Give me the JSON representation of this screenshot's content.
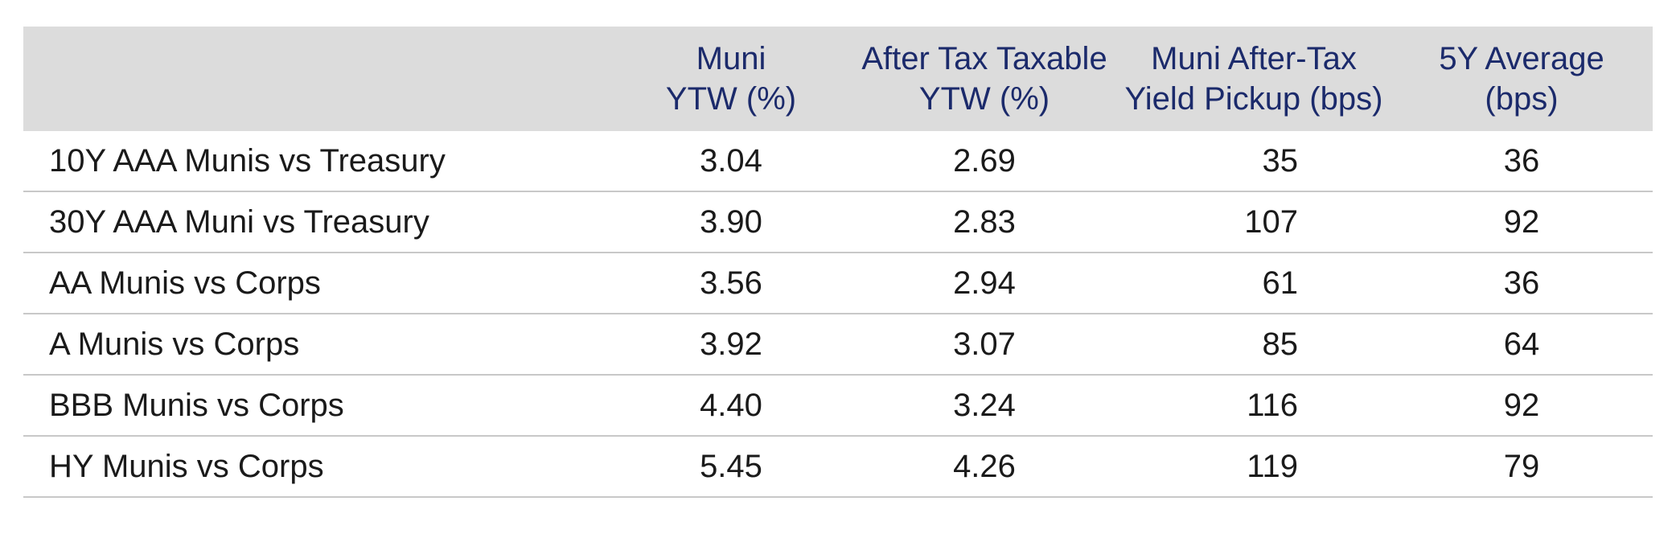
{
  "chart_data": {
    "type": "table",
    "columns": [
      "",
      "Muni YTW (%)",
      "After Tax Taxable YTW (%)",
      "Muni After-Tax Yield Pickup (bps)",
      "5Y Average (bps)"
    ],
    "header_lines": [
      [
        "",
        ""
      ],
      [
        "Muni",
        "YTW (%)"
      ],
      [
        "After Tax Taxable",
        "YTW (%)"
      ],
      [
        "Muni After-Tax",
        "Yield Pickup (bps)"
      ],
      [
        "5Y Average",
        "(bps)"
      ]
    ],
    "rows": [
      [
        "10Y AAA Munis vs Treasury",
        "3.04",
        "2.69",
        "35",
        "36"
      ],
      [
        "30Y AAA Muni vs Treasury",
        "3.90",
        "2.83",
        "107",
        "92"
      ],
      [
        "AA Munis vs Corps",
        "3.56",
        "2.94",
        "61",
        "36"
      ],
      [
        "A Munis vs Corps",
        "3.92",
        "3.07",
        "85",
        "64"
      ],
      [
        "BBB Munis vs Corps",
        "4.40",
        "3.24",
        "116",
        "92"
      ],
      [
        "HY Munis vs Corps",
        "5.45",
        "4.26",
        "119",
        "79"
      ]
    ],
    "header_background": "#dcdcdc",
    "header_text_color": "#1b2a6b",
    "body_text_color": "#1a1a1a"
  }
}
